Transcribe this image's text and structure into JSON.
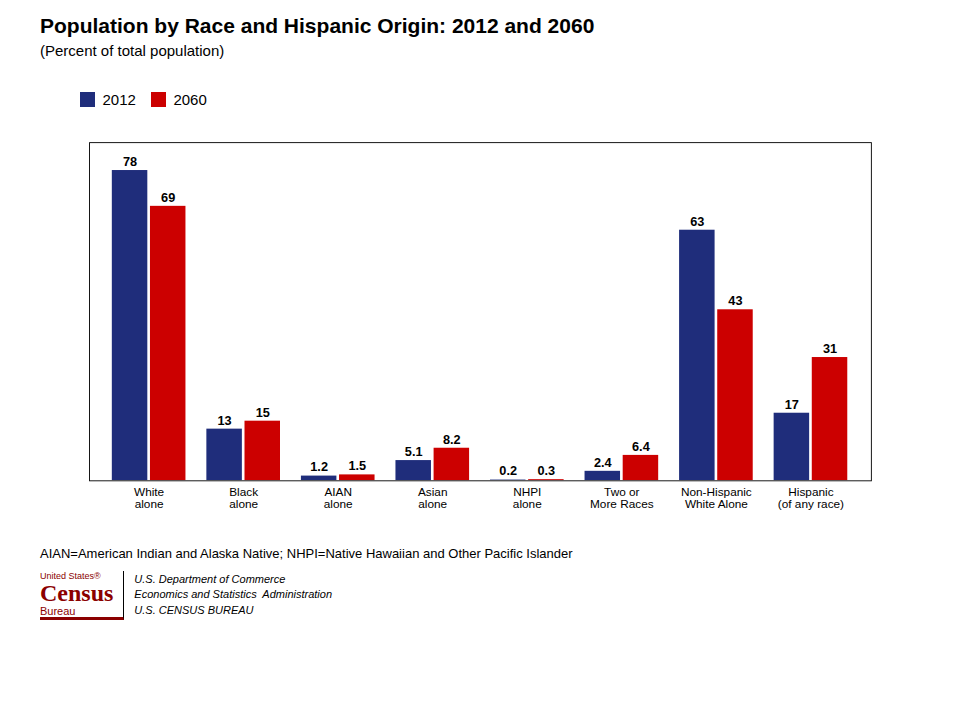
{
  "chart_data": {
    "type": "bar",
    "title": "Population by Race and Hispanic Origin: 2012 and 2060",
    "subtitle": "(Percent of total population)",
    "categories": [
      "White\nalone",
      "Black\nalone",
      "AIAN\nalone",
      "Asian\nalone",
      "NHPI\nalone",
      "Two or\nMore Races",
      "Non-Hispanic\nWhite Alone",
      "Hispanic\n(of any race)"
    ],
    "series": [
      {
        "name": "2012",
        "color": "#1F2D7B",
        "values": [
          78,
          13,
          1.2,
          5.1,
          0.2,
          2.4,
          63,
          17
        ]
      },
      {
        "name": "2060",
        "color": "#CC0000",
        "values": [
          69,
          15,
          1.5,
          8.2,
          0.3,
          6.4,
          43,
          31
        ]
      }
    ],
    "ylim": [
      0,
      85
    ],
    "grid": false,
    "legend": "top",
    "data_labels": true,
    "tick_labels": "x",
    "annotations": [
      "AIAN=American Indian and Alaska Native; NHPI=Native Hawaiian and Other Pacific Islander",
      "United States®",
      "Census",
      "Bureau",
      "U.S. Department of Commerce",
      "Economics and Statistics  Administration",
      "U.S. CENSUS BUREAU"
    ]
  }
}
